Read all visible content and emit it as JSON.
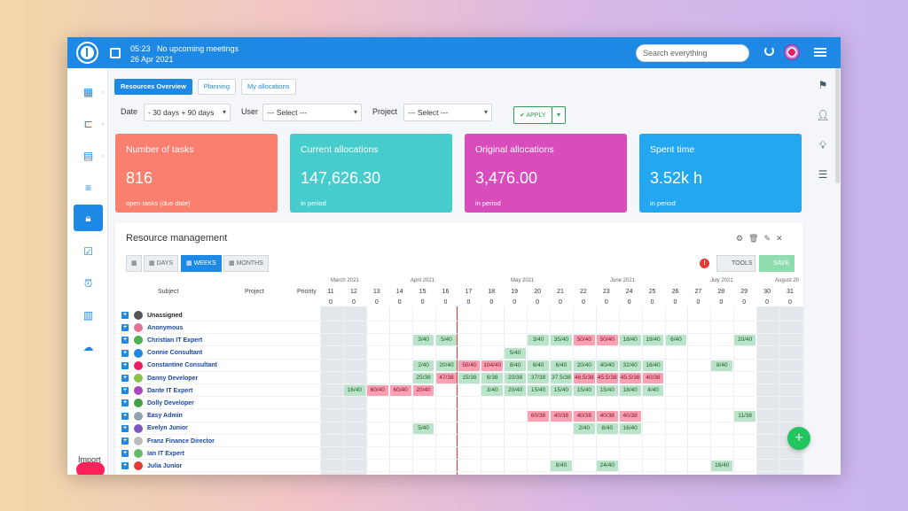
{
  "topbar": {
    "time_text": "05:23",
    "meetings_text": "No upcoming meetings",
    "date_text": "26 Apr 2021",
    "search_placeholder": "Search everything"
  },
  "tabs": [
    "Resources Overview",
    "Planning",
    "My allocations"
  ],
  "filters": {
    "date_label": "Date",
    "date_value": "- 30 days + 90 days",
    "user_label": "User",
    "user_value": "--- Select ---",
    "project_label": "Project",
    "project_value": "--- Select ---",
    "apply_label": "APPLY"
  },
  "cards": [
    {
      "title": "Number of tasks",
      "value": "816",
      "sub": "open tasks (due date)",
      "color": "#fb7f6e"
    },
    {
      "title": "Current allocations",
      "value": "147,626.30",
      "sub": "in period",
      "color": "#46cccc"
    },
    {
      "title": "Original allocations",
      "value": "3,476.00",
      "sub": "in period",
      "color": "#d94cbc"
    },
    {
      "title": "Spent time",
      "value": "3.52k h",
      "sub": "in period",
      "color": "#22a7f0"
    }
  ],
  "panel": {
    "title": "Resource management",
    "view_buttons": [
      "DAYS",
      "WEEKS",
      "MONTHS"
    ],
    "active_view": "WEEKS",
    "tools_label": "TOOLS",
    "save_label": "SAVE",
    "col_subject": "Subject",
    "col_project": "Project",
    "col_priority": "Priority",
    "months": [
      "March 2021",
      "April 2021",
      "May 2021",
      "June 2021",
      "July 2021",
      "August 20"
    ],
    "weeks": [
      "11",
      "12",
      "13",
      "14",
      "15",
      "16",
      "17",
      "18",
      "19",
      "20",
      "21",
      "22",
      "23",
      "24",
      "25",
      "26",
      "27",
      "28",
      "29",
      "30",
      "31"
    ],
    "week_totals": [
      "0",
      "0",
      "0",
      "0",
      "0",
      "0",
      "0",
      "0",
      "0",
      "0",
      "0",
      "0",
      "0",
      "0",
      "0",
      "0",
      "0",
      "0",
      "0",
      "0",
      "0"
    ],
    "users": [
      "Unassigned",
      "Anonymous",
      "Christian IT Expert",
      "Connie Consultant",
      "Constantine Consultant",
      "Danny Developer",
      "Dante IT Expert",
      "Dolly Developer",
      "Easy Admin",
      "Evelyn Junior",
      "Franz Finance Director",
      "Ian IT Expert",
      "Julia Junior"
    ],
    "rows": [
      [],
      [],
      [
        [
          4,
          "3/40",
          "g"
        ],
        [
          5,
          "5/40",
          "g"
        ],
        [
          9,
          "3/40",
          "g"
        ],
        [
          10,
          "35/40",
          "g"
        ],
        [
          11,
          "50/40",
          "r"
        ],
        [
          12,
          "50/40",
          "r"
        ],
        [
          13,
          "18/40",
          "g"
        ],
        [
          14,
          "19/40",
          "g"
        ],
        [
          15,
          "6/40",
          "g"
        ],
        [
          18,
          "20/40",
          "g"
        ]
      ],
      [
        [
          8,
          "5/40",
          "g"
        ]
      ],
      [
        [
          4,
          "2/40",
          "g"
        ],
        [
          5,
          "20/40",
          "g"
        ],
        [
          6,
          "50/40",
          "r"
        ],
        [
          7,
          "104/40",
          "r"
        ],
        [
          8,
          "8/40",
          "g"
        ],
        [
          9,
          "6/40",
          "g"
        ],
        [
          10,
          "6/40",
          "g"
        ],
        [
          11,
          "20/40",
          "g"
        ],
        [
          12,
          "40/40",
          "g"
        ],
        [
          13,
          "32/40",
          "g"
        ],
        [
          14,
          "16/40",
          "g"
        ],
        [
          17,
          "8/40",
          "g"
        ]
      ],
      [
        [
          4,
          "25/38",
          "g"
        ],
        [
          5,
          "47/38",
          "r"
        ],
        [
          6,
          "15/38",
          "g"
        ],
        [
          7,
          "6/38",
          "g"
        ],
        [
          8,
          "20/38",
          "g"
        ],
        [
          9,
          "37/38",
          "g"
        ],
        [
          10,
          "37.5/38",
          "g"
        ],
        [
          11,
          "46.5/38",
          "r"
        ],
        [
          12,
          "45.5/38",
          "r"
        ],
        [
          13,
          "45.5/38",
          "r"
        ],
        [
          14,
          "40/38",
          "r"
        ]
      ],
      [
        [
          1,
          "16/40",
          "g"
        ],
        [
          2,
          "60/40",
          "r"
        ],
        [
          3,
          "60/40",
          "r"
        ],
        [
          4,
          "20/40",
          "r"
        ],
        [
          7,
          "3/40",
          "g"
        ],
        [
          8,
          "20/40",
          "g"
        ],
        [
          9,
          "15/40",
          "g"
        ],
        [
          10,
          "15/40",
          "g"
        ],
        [
          11,
          "15/40",
          "g"
        ],
        [
          12,
          "15/40",
          "g"
        ],
        [
          13,
          "18/40",
          "g"
        ],
        [
          14,
          "4/40",
          "g"
        ]
      ],
      [],
      [
        [
          9,
          "60/38",
          "r"
        ],
        [
          10,
          "40/38",
          "r"
        ],
        [
          11,
          "40/38",
          "r"
        ],
        [
          12,
          "40/38",
          "r"
        ],
        [
          13,
          "40/38",
          "r"
        ],
        [
          18,
          "11/38",
          "g"
        ]
      ],
      [
        [
          4,
          "5/40",
          "g"
        ],
        [
          11,
          "2/40",
          "g"
        ],
        [
          12,
          "8/40",
          "g"
        ],
        [
          13,
          "16/40",
          "g"
        ]
      ],
      [],
      [],
      [
        [
          10,
          "8/40",
          "g"
        ],
        [
          12,
          "24/40",
          "g"
        ],
        [
          17,
          "16/40",
          "g"
        ]
      ]
    ]
  },
  "sidebar": {
    "import_label": "Import"
  },
  "fab_label": "+"
}
